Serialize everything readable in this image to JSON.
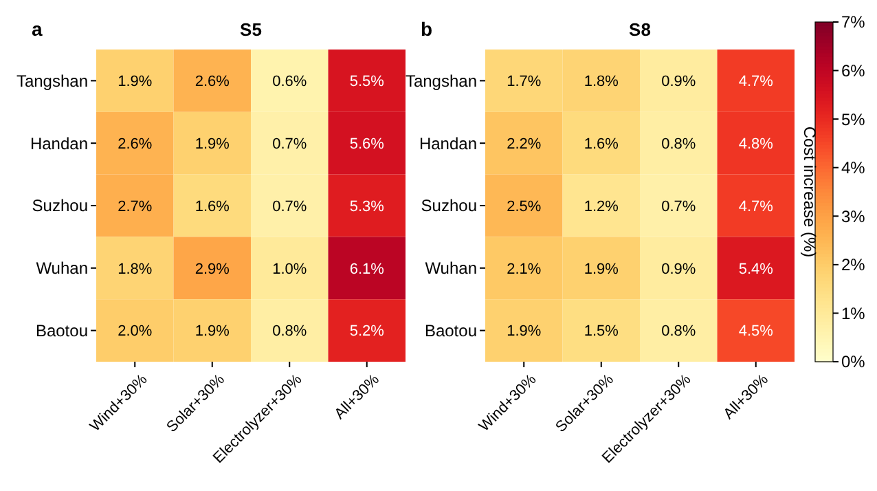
{
  "chart_data": [
    {
      "type": "heatmap",
      "title": "S5",
      "annotations": [
        "a"
      ],
      "categories": [
        "Wind+30%",
        "Solar+30%",
        "Electrolyzer+30%",
        "All+30%"
      ],
      "y_categories": [
        "Tangshan",
        "Handan",
        "Suzhou",
        "Wuhan",
        "Baotou"
      ],
      "cells": [
        [
          1.9,
          2.6,
          0.6,
          5.5
        ],
        [
          2.6,
          1.9,
          0.7,
          5.6
        ],
        [
          2.7,
          1.6,
          0.7,
          5.3
        ],
        [
          1.8,
          2.9,
          1.0,
          6.1
        ],
        [
          2.0,
          1.9,
          0.8,
          5.2
        ]
      ],
      "cell_labels": [
        [
          "1.9%",
          "2.6%",
          "0.6%",
          "5.5%"
        ],
        [
          "2.6%",
          "1.9%",
          "0.7%",
          "5.6%"
        ],
        [
          "2.7%",
          "1.6%",
          "0.7%",
          "5.3%"
        ],
        [
          "1.8%",
          "2.9%",
          "1.0%",
          "6.1%"
        ],
        [
          "2.0%",
          "1.9%",
          "0.8%",
          "5.2%"
        ]
      ]
    },
    {
      "type": "heatmap",
      "title": "S8",
      "annotations": [
        "b"
      ],
      "categories": [
        "Wind+30%",
        "Solar+30%",
        "Electrolyzer+30%",
        "All+30%"
      ],
      "y_categories": [
        "Tangshan",
        "Handan",
        "Suzhou",
        "Wuhan",
        "Baotou"
      ],
      "cells": [
        [
          1.7,
          1.8,
          0.9,
          4.7
        ],
        [
          2.2,
          1.6,
          0.8,
          4.8
        ],
        [
          2.5,
          1.2,
          0.7,
          4.7
        ],
        [
          2.1,
          1.9,
          0.9,
          5.4
        ],
        [
          1.9,
          1.5,
          0.8,
          4.5
        ]
      ],
      "cell_labels": [
        [
          "1.7%",
          "1.8%",
          "0.9%",
          "4.7%"
        ],
        [
          "2.2%",
          "1.6%",
          "0.8%",
          "4.8%"
        ],
        [
          "2.5%",
          "1.2%",
          "0.7%",
          "4.7%"
        ],
        [
          "2.1%",
          "1.9%",
          "0.9%",
          "5.4%"
        ],
        [
          "1.9%",
          "1.5%",
          "0.8%",
          "4.5%"
        ]
      ],
      "clim": [
        0,
        7
      ],
      "clabel": "Cost increase (%)",
      "cticks": [
        {
          "value": 0,
          "label": "0%"
        },
        {
          "value": 1,
          "label": "1%"
        },
        {
          "value": 2,
          "label": "2%"
        },
        {
          "value": 3,
          "label": "3%"
        },
        {
          "value": 4,
          "label": "4%"
        },
        {
          "value": 5,
          "label": "5%"
        },
        {
          "value": 6,
          "label": "6%"
        },
        {
          "value": 7,
          "label": "7%"
        }
      ]
    }
  ]
}
